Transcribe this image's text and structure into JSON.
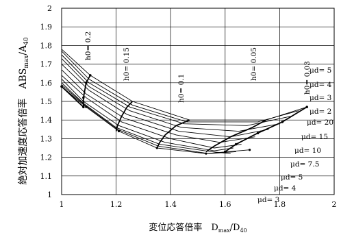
{
  "chart_data": {
    "type": "line",
    "xlabel": "変位応答倍率　D",
    "xlabel_sub": "max",
    "xlabel_tail": "/D",
    "xlabel_sub2": "40",
    "ylabel": "絶対加速度応答倍率　ABS",
    "ylabel_sub": "max",
    "ylabel_tail": "/A",
    "ylabel_sub2": "40",
    "xlim": [
      1,
      2
    ],
    "ylim": [
      1,
      2
    ],
    "x_ticks": [
      {
        "v": 1,
        "label": "1"
      },
      {
        "v": 1.2,
        "label": "1.2"
      },
      {
        "v": 1.4,
        "label": "1.4"
      },
      {
        "v": 1.6,
        "label": "1.6"
      },
      {
        "v": 1.8,
        "label": "1.8"
      },
      {
        "v": 2,
        "label": "2"
      }
    ],
    "y_ticks": [
      {
        "v": 1,
        "label": "1"
      },
      {
        "v": 1.1,
        "label": "1.1"
      },
      {
        "v": 1.2,
        "label": "1.2"
      },
      {
        "v": 1.3,
        "label": "1.3"
      },
      {
        "v": 1.4,
        "label": "1.4"
      },
      {
        "v": 1.5,
        "label": "1.5"
      },
      {
        "v": 1.6,
        "label": "1.6"
      },
      {
        "v": 1.7,
        "label": "1.7"
      },
      {
        "v": 1.8,
        "label": "1.8"
      },
      {
        "v": 1.9,
        "label": "1.9"
      },
      {
        "v": 2,
        "label": "2"
      }
    ],
    "grid_x": [
      1.2,
      1.4,
      1.6,
      1.8
    ],
    "grid_y": [
      1.1,
      1.2,
      1.3,
      1.4,
      1.5,
      1.6,
      1.7,
      1.8,
      1.9
    ],
    "series": [
      {
        "name": "μd= 3",
        "x": [
          1.0,
          1.09,
          1.21,
          1.35,
          1.53,
          1.69
        ],
        "y": [
          1.58,
          1.47,
          1.34,
          1.25,
          1.22,
          1.24
        ],
        "markers": true
      },
      {
        "name": "μd= 4",
        "x": [
          1.0,
          1.085,
          1.205,
          1.355,
          1.54,
          1.64
        ],
        "y": [
          1.59,
          1.48,
          1.35,
          1.26,
          1.22,
          1.23
        ]
      },
      {
        "name": "μd= 5",
        "x": [
          1.0,
          1.08,
          1.2,
          1.36,
          1.55,
          1.62
        ],
        "y": [
          1.6,
          1.49,
          1.36,
          1.27,
          1.23,
          1.22
        ]
      },
      {
        "name": "μd= 7.5",
        "x": [
          1.0,
          1.08,
          1.21,
          1.38,
          1.56,
          1.63
        ],
        "y": [
          1.62,
          1.5,
          1.37,
          1.28,
          1.235,
          1.25
        ]
      },
      {
        "name": "μd= 10",
        "x": [
          1.0,
          1.09,
          1.22,
          1.4,
          1.56,
          1.66
        ],
        "y": [
          1.64,
          1.52,
          1.39,
          1.3,
          1.25,
          1.27
        ]
      },
      {
        "name": "μd= 15",
        "x": [
          1.0,
          1.09,
          1.23,
          1.42,
          1.58,
          1.71
        ],
        "y": [
          1.67,
          1.54,
          1.41,
          1.32,
          1.28,
          1.31
        ]
      },
      {
        "name": "μd= 20",
        "x": [
          1.0,
          1.1,
          1.24,
          1.43,
          1.62,
          1.76
        ],
        "y": [
          1.7,
          1.56,
          1.43,
          1.34,
          1.31,
          1.35
        ]
      },
      {
        "name": "μd= 2",
        "x": [
          1.0,
          1.1,
          1.25,
          1.44,
          1.65,
          1.8
        ],
        "y": [
          1.73,
          1.58,
          1.45,
          1.36,
          1.34,
          1.38
        ]
      },
      {
        "name": "μd= 3",
        "x": [
          1.0,
          1.1,
          1.25,
          1.45,
          1.68,
          1.84
        ],
        "y": [
          1.75,
          1.6,
          1.47,
          1.38,
          1.37,
          1.42
        ]
      },
      {
        "name": "μd= 4",
        "x": [
          1.0,
          1.1,
          1.26,
          1.46,
          1.72,
          1.87
        ],
        "y": [
          1.77,
          1.62,
          1.48,
          1.39,
          1.39,
          1.45
        ]
      },
      {
        "name": "μd= 5",
        "x": [
          1.0,
          1.105,
          1.26,
          1.47,
          1.75,
          1.9
        ],
        "y": [
          1.78,
          1.64,
          1.5,
          1.4,
          1.4,
          1.47
        ]
      }
    ],
    "h0_curves": [
      {
        "label": "h0= 0.2",
        "x": [
          1.0,
          1.08,
          1.08,
          1.09,
          1.105
        ],
        "y": [
          1.58,
          1.47,
          1.52,
          1.6,
          1.64
        ],
        "markers": true
      },
      {
        "label": "h0= 0.15",
        "x": [
          1.2,
          1.205,
          1.22,
          1.24,
          1.26
        ],
        "y": [
          1.34,
          1.37,
          1.42,
          1.47,
          1.5
        ]
      },
      {
        "label": "h0= 0.1",
        "x": [
          1.35,
          1.36,
          1.38,
          1.42,
          1.47
        ],
        "y": [
          1.25,
          1.28,
          1.32,
          1.37,
          1.4
        ]
      },
      {
        "label": "h0= 0.05",
        "x": [
          1.53,
          1.56,
          1.62,
          1.7,
          1.75
        ],
        "y": [
          1.23,
          1.26,
          1.31,
          1.36,
          1.4
        ]
      },
      {
        "label": "h0= 0.03",
        "x": [
          1.6,
          1.64,
          1.72,
          1.81,
          1.9
        ],
        "y": [
          1.23,
          1.27,
          1.33,
          1.39,
          1.47
        ],
        "markers": true
      }
    ],
    "right_labels": [
      "μd= 5",
      "μd= 4",
      "μd= 3",
      "μd= 2",
      "μd= 20",
      "μd= 15",
      "μd= 10",
      "μd= 7.5",
      "μd= 5",
      "μd= 4",
      "μd= 3"
    ],
    "h0_labels": [
      "h0= 0.2",
      "h0= 0.15",
      "h0= 0.1",
      "h0= 0.05",
      "h0= 0.03"
    ]
  }
}
